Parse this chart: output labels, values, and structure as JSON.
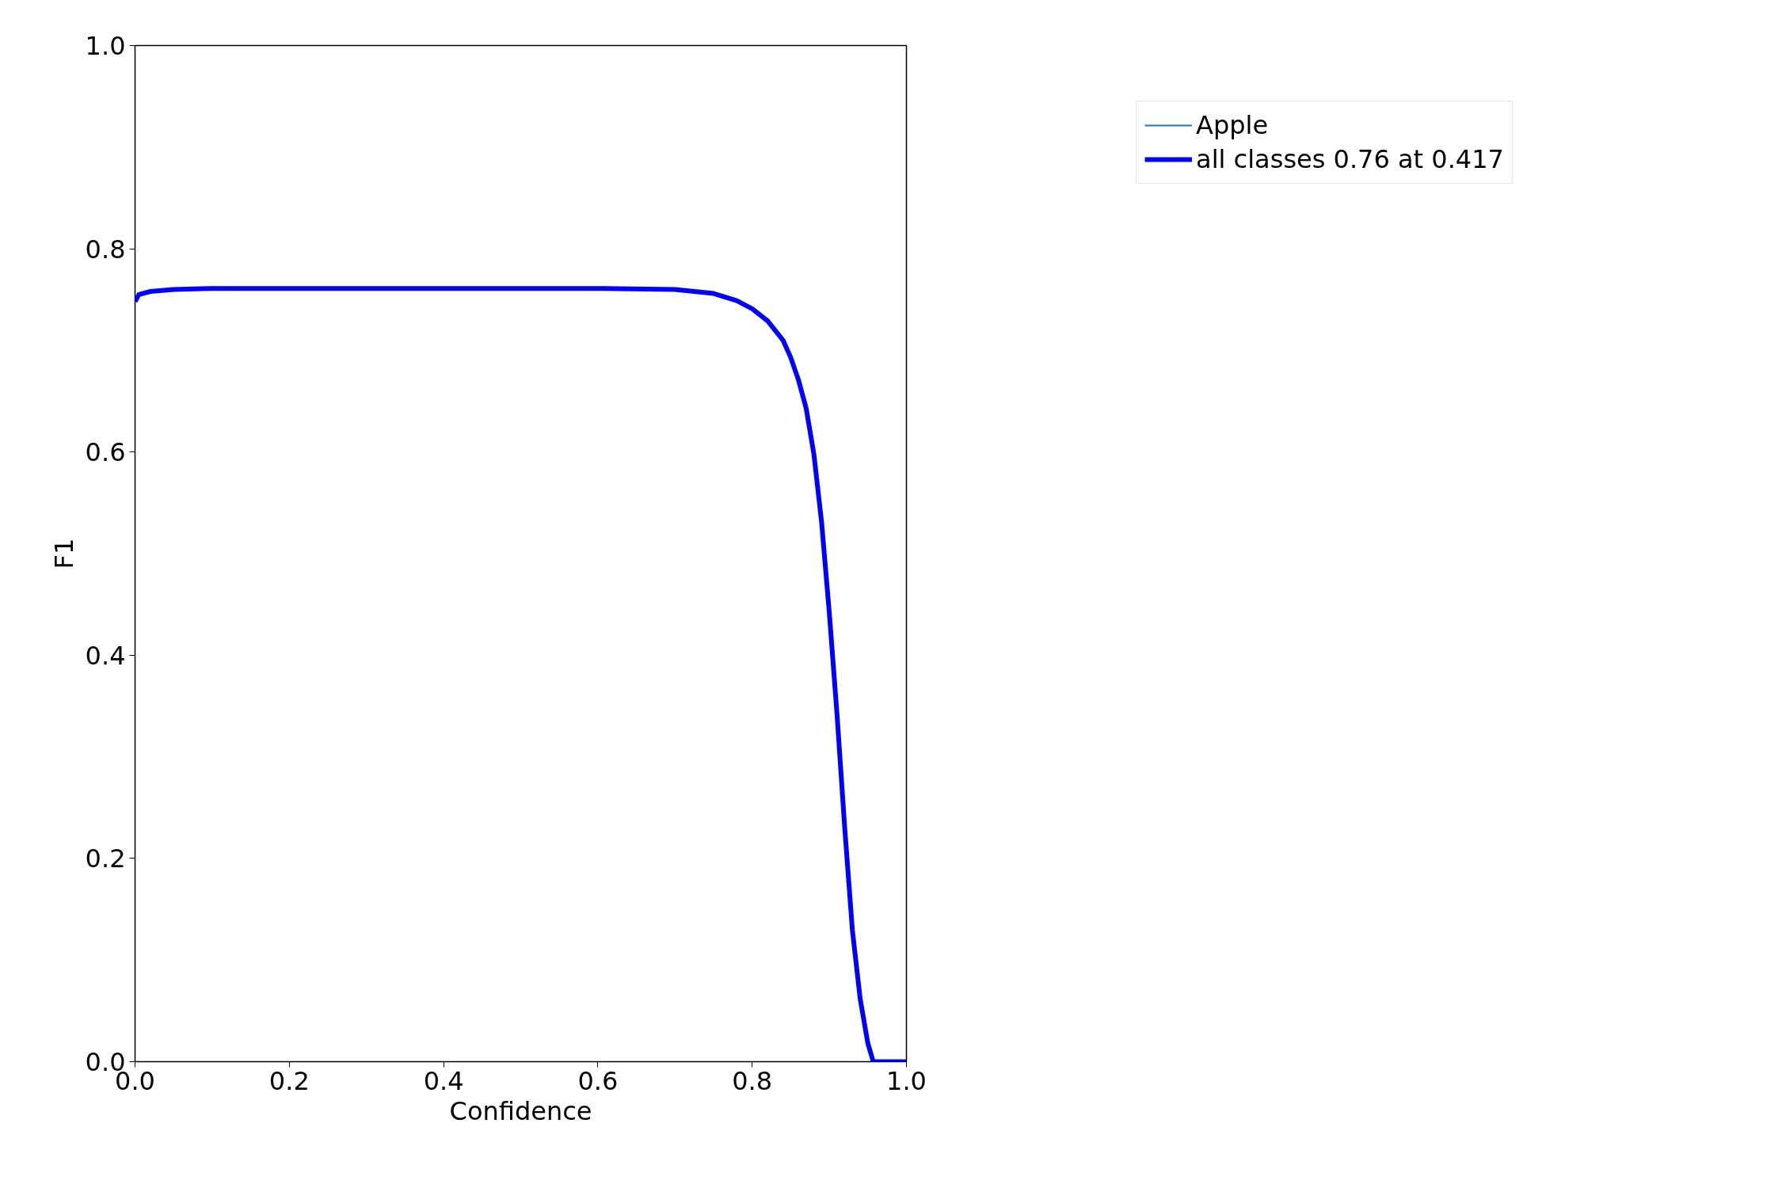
{
  "chart_data": {
    "type": "line",
    "xlabel": "Confidence",
    "ylabel": "F1",
    "x": [
      0,
      0.005,
      0.02,
      0.05,
      0.1,
      0.2,
      0.3,
      0.4,
      0.5,
      0.6,
      0.7,
      0.75,
      0.78,
      0.8,
      0.82,
      0.84,
      0.85,
      0.86,
      0.87,
      0.88,
      0.89,
      0.9,
      0.91,
      0.92,
      0.93,
      0.94,
      0.95,
      0.957,
      1.0
    ],
    "series": [
      {
        "name": "Apple",
        "color": "#1f77b4",
        "values": [
          null,
          null,
          null,
          null,
          null,
          null,
          null,
          null,
          null,
          null,
          null,
          null,
          null,
          null,
          null,
          null,
          null,
          null,
          null,
          null,
          null,
          null,
          null,
          null,
          null,
          null,
          null,
          null,
          null
        ]
      },
      {
        "name": "all classes 0.76 at 0.417",
        "color": "#0000ff",
        "values": [
          0.748,
          0.755,
          0.758,
          0.76,
          0.761,
          0.761,
          0.761,
          0.761,
          0.761,
          0.761,
          0.76,
          0.756,
          0.749,
          0.741,
          0.729,
          0.71,
          0.693,
          0.671,
          0.643,
          0.598,
          0.531,
          0.442,
          0.342,
          0.23,
          0.129,
          0.062,
          0.018,
          0,
          0
        ]
      }
    ],
    "xlim": [
      0,
      1
    ],
    "ylim": [
      0,
      1
    ],
    "xticks": [
      {
        "value": 0,
        "label": "0.0"
      },
      0.2,
      0.4,
      0.6,
      0.8,
      {
        "value": 1,
        "label": "1.0"
      }
    ],
    "yticks": [
      {
        "value": 0,
        "label": "0.0"
      },
      0.2,
      0.4,
      0.6,
      0.8,
      {
        "value": 1,
        "label": "1.0"
      }
    ],
    "grid": false,
    "legend": "top right",
    "marker": "none",
    "line_style": "solid"
  }
}
